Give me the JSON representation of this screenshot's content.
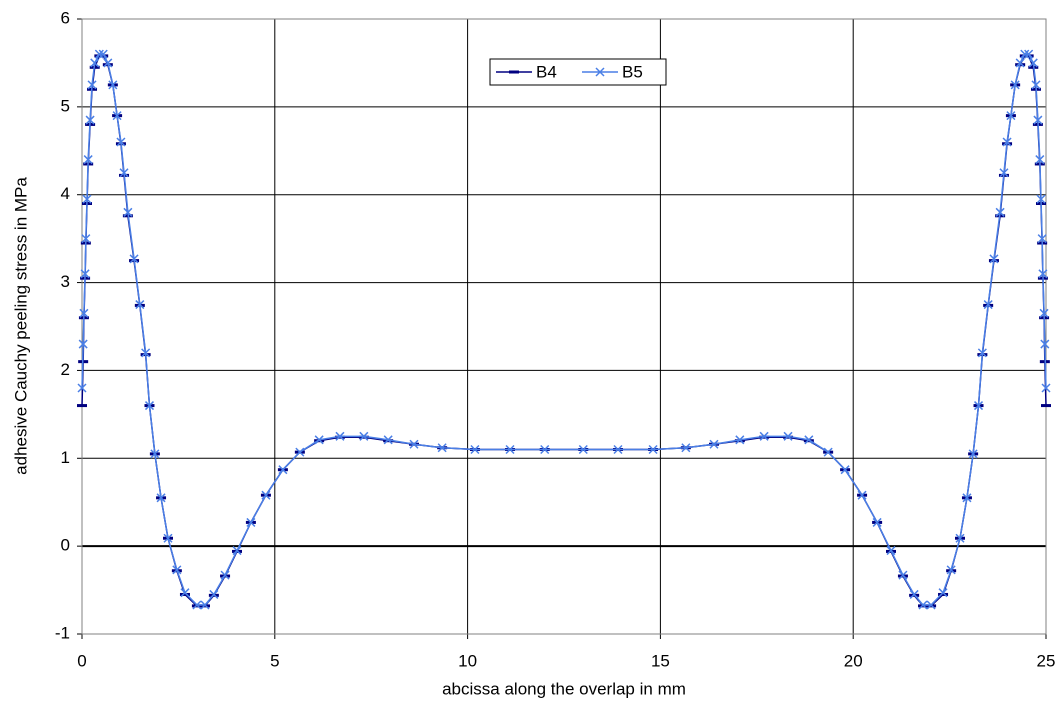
{
  "chart_data": {
    "type": "line",
    "x_label": "abcissa along the overlap in mm",
    "y_label": "adhesive Cauchy peeling stress in MPa",
    "x": [
      0.0,
      0.03,
      0.05,
      0.08,
      0.1,
      0.13,
      0.16,
      0.21,
      0.26,
      0.33,
      0.45,
      0.55,
      0.67,
      0.8,
      0.91,
      1.01,
      1.09,
      1.19,
      1.35,
      1.5,
      1.65,
      1.75,
      1.89,
      2.05,
      2.23,
      2.46,
      2.67,
      2.98,
      3.19,
      3.42,
      3.71,
      4.02,
      4.38,
      4.77,
      5.21,
      5.65,
      6.15,
      6.69,
      7.31,
      7.94,
      8.61,
      9.34,
      10.19,
      11.1,
      12.0,
      13.0,
      13.9,
      14.81,
      15.66,
      16.39,
      17.06,
      17.69,
      18.31,
      18.85,
      19.35,
      19.79,
      20.23,
      20.62,
      20.98,
      21.29,
      21.58,
      21.81,
      22.02,
      22.33,
      22.54,
      22.77,
      22.95,
      23.11,
      23.25,
      23.35,
      23.5,
      23.65,
      23.81,
      23.91,
      23.99,
      24.09,
      24.2,
      24.33,
      24.45,
      24.55,
      24.67,
      24.74,
      24.79,
      24.84,
      24.87,
      24.9,
      24.92,
      24.95,
      24.97,
      25.0
    ],
    "series": [
      {
        "name": "B4",
        "color": "#000080",
        "marker": "dash",
        "values": [
          1.6,
          2.1,
          2.6,
          3.05,
          3.45,
          3.9,
          4.35,
          4.8,
          5.2,
          5.45,
          5.58,
          5.58,
          5.48,
          5.25,
          4.9,
          4.58,
          4.22,
          3.76,
          3.25,
          2.74,
          2.18,
          1.6,
          1.05,
          0.55,
          0.09,
          -0.28,
          -0.55,
          -0.68,
          -0.68,
          -0.56,
          -0.34,
          -0.06,
          0.27,
          0.58,
          0.87,
          1.07,
          1.2,
          1.24,
          1.24,
          1.2,
          1.16,
          1.12,
          1.1,
          1.1,
          1.1,
          1.1,
          1.1,
          1.1,
          1.12,
          1.16,
          1.2,
          1.24,
          1.24,
          1.2,
          1.07,
          0.87,
          0.58,
          0.27,
          -0.06,
          -0.34,
          -0.56,
          -0.68,
          -0.68,
          -0.55,
          -0.28,
          0.09,
          0.55,
          1.05,
          1.6,
          2.18,
          2.74,
          3.25,
          3.76,
          4.22,
          4.58,
          4.9,
          5.25,
          5.48,
          5.58,
          5.58,
          5.45,
          5.2,
          4.8,
          4.35,
          3.9,
          3.45,
          3.05,
          2.6,
          2.1,
          1.6
        ]
      },
      {
        "name": "B5",
        "color": "#4a7fe6",
        "marker": "cross",
        "values": [
          1.8,
          2.3,
          2.65,
          3.1,
          3.5,
          3.95,
          4.4,
          4.85,
          5.25,
          5.5,
          5.6,
          5.6,
          5.5,
          5.25,
          4.9,
          4.6,
          4.25,
          3.8,
          3.27,
          2.75,
          2.2,
          1.6,
          1.05,
          0.55,
          0.09,
          -0.27,
          -0.53,
          -0.67,
          -0.67,
          -0.55,
          -0.33,
          -0.05,
          0.27,
          0.58,
          0.87,
          1.07,
          1.21,
          1.25,
          1.25,
          1.21,
          1.16,
          1.12,
          1.1,
          1.1,
          1.1,
          1.1,
          1.1,
          1.1,
          1.12,
          1.16,
          1.21,
          1.25,
          1.25,
          1.21,
          1.07,
          0.87,
          0.58,
          0.27,
          -0.05,
          -0.33,
          -0.55,
          -0.67,
          -0.67,
          -0.53,
          -0.27,
          0.09,
          0.55,
          1.05,
          1.6,
          2.2,
          2.75,
          3.27,
          3.8,
          4.25,
          4.6,
          4.9,
          5.25,
          5.5,
          5.6,
          5.6,
          5.5,
          5.25,
          4.85,
          4.4,
          3.95,
          3.5,
          3.1,
          2.65,
          2.3,
          1.8
        ]
      }
    ],
    "xlim": [
      0,
      25
    ],
    "xticks": [
      0,
      5,
      10,
      15,
      20,
      25
    ],
    "ylim": [
      -1,
      6
    ],
    "yticks": [
      -1,
      0,
      1,
      2,
      3,
      4,
      5,
      6
    ],
    "grid": true,
    "legend": "top"
  }
}
